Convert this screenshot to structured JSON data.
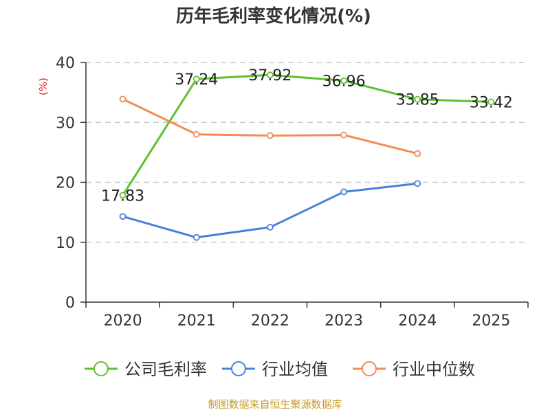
{
  "chart_data": {
    "type": "line",
    "title": "历年毛利率变化情况(%)",
    "ylabel": "(%)",
    "xlabel": "",
    "categories": [
      "2020",
      "2021",
      "2022",
      "2023",
      "2024",
      "2025"
    ],
    "ylim": [
      0,
      40
    ],
    "yticks": [
      0,
      10,
      20,
      30,
      40
    ],
    "grid": true,
    "legend_position": "bottom",
    "series": [
      {
        "name": "公司毛利率",
        "color": "#5cc12f",
        "values": [
          17.83,
          37.24,
          37.92,
          36.96,
          33.85,
          33.42
        ],
        "data_labels": [
          "17.83",
          "37.24",
          "37.92",
          "36.96",
          "33.85",
          "33.42"
        ]
      },
      {
        "name": "行业均值",
        "color": "#4a7fdb",
        "values": [
          14.3,
          10.8,
          12.5,
          18.4,
          19.8,
          null
        ]
      },
      {
        "name": "行业中位数",
        "color": "#f28c55",
        "values": [
          33.9,
          28.0,
          27.8,
          27.9,
          24.8,
          null
        ]
      }
    ]
  },
  "colors": {
    "unit_label": "#dd2222",
    "source_text": "#c49a2c",
    "grid": "#c8c8c8",
    "axis": "#333333"
  },
  "source": "制图数据来自恒生聚源数据库"
}
